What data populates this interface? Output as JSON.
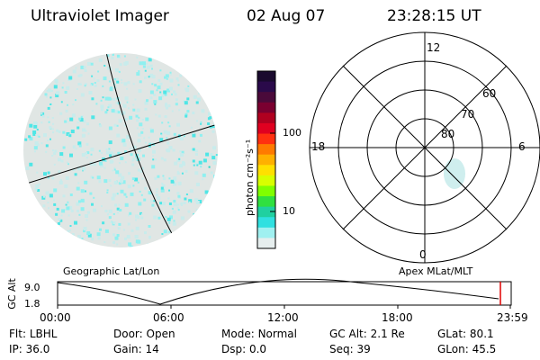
{
  "header": {
    "instrument": "Ultraviolet Imager",
    "date": "02 Aug 07",
    "time": "23:28:15 UT"
  },
  "left_panel": {
    "label": "Geographic Lat/Lon",
    "disk_color": "#e0e6e4",
    "speckle_colors": [
      "#8ff0f0",
      "#4fe6e6",
      "#c8ecec",
      "#22d8c8"
    ]
  },
  "colorbar": {
    "label": "photon cm⁻²s⁻¹",
    "ticks": [
      "100",
      "10"
    ],
    "scale": "log",
    "colors": [
      "#1a0a2e",
      "#2a0a4a",
      "#4a0a3a",
      "#7a0030",
      "#b00020",
      "#e00020",
      "#ff3010",
      "#ff7a00",
      "#ffb000",
      "#ffe000",
      "#d8ff00",
      "#80ff00",
      "#30e040",
      "#20d0a0",
      "#30e0e0",
      "#a0f0f0",
      "#e6eeee"
    ]
  },
  "right_panel": {
    "label": "Apex MLat/MLT",
    "mlt_labels": {
      "top": "12",
      "bottom": "0",
      "left": "18",
      "right": "6"
    },
    "mlat_labels": [
      "60",
      "70",
      "80"
    ],
    "blob_color": "#cfeeee"
  },
  "timeline": {
    "ylabel": "GC Alt",
    "y_ticks": [
      "9.0",
      "1.8"
    ],
    "x_ticks": [
      "00:00",
      "06:00",
      "12:00",
      "18:00",
      "23:59"
    ],
    "marker_color": "#e00000"
  },
  "status": {
    "row1": [
      {
        "key": "Flt:",
        "value": "LBHL"
      },
      {
        "key": "Door:",
        "value": "Open"
      },
      {
        "key": "Mode:",
        "value": "Normal"
      },
      {
        "key": "GC Alt:",
        "value": "2.1 Re"
      },
      {
        "key": "GLat:",
        "value": "80.1"
      }
    ],
    "row2": [
      {
        "key": "IP:",
        "value": "36.0"
      },
      {
        "key": "Gain:",
        "value": "14"
      },
      {
        "key": "Dsp:",
        "value": "0.0"
      },
      {
        "key": "Seq:",
        "value": "39"
      },
      {
        "key": "GLon:",
        "value": "45.5"
      }
    ]
  }
}
